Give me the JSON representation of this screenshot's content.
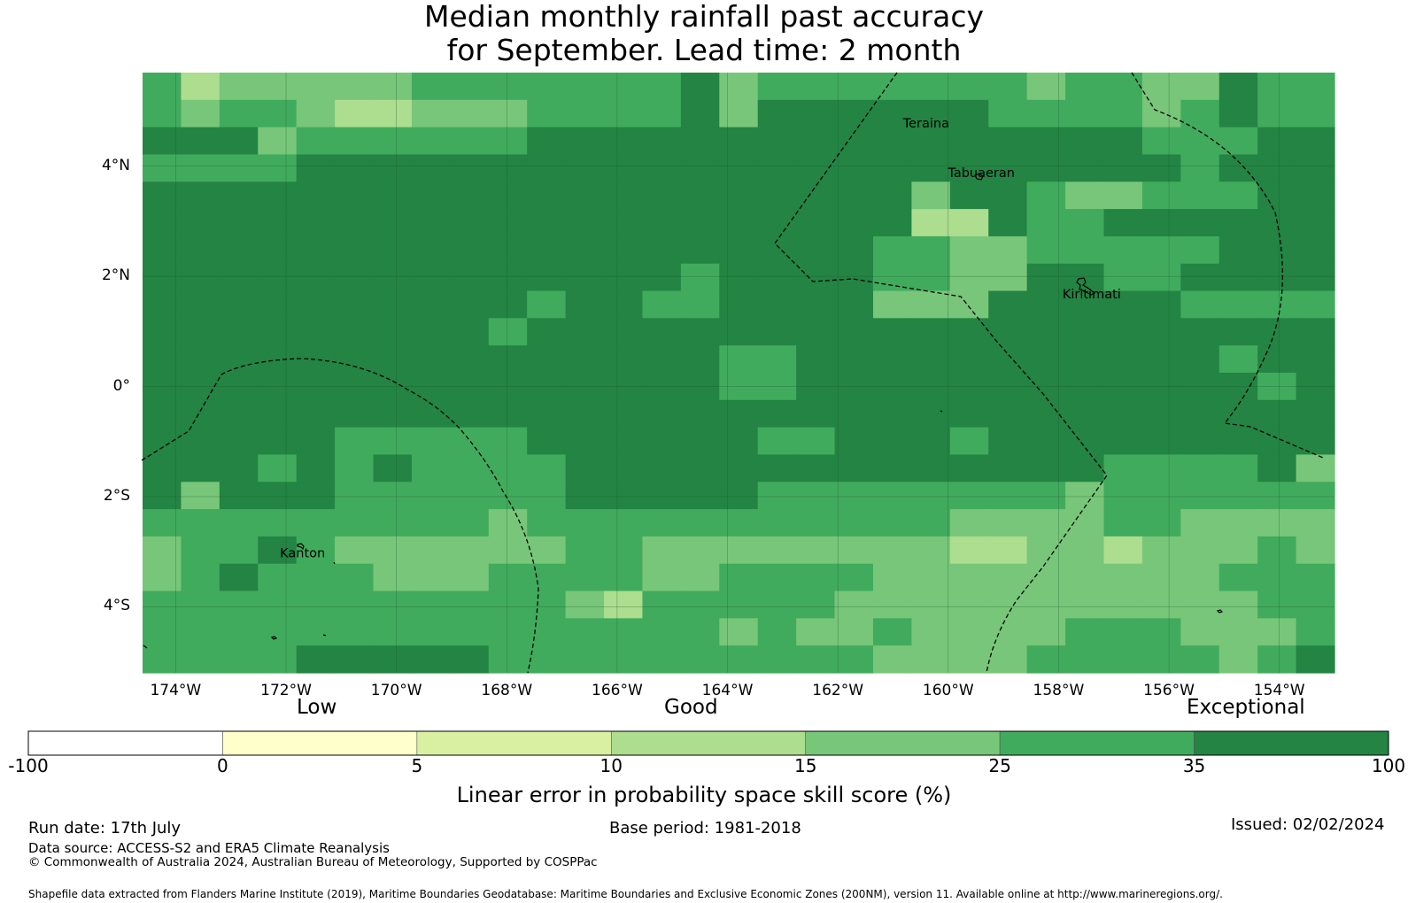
{
  "title": {
    "line1": "Median monthly rainfall past accuracy",
    "line2": "for September. Lead time: 2 month"
  },
  "map": {
    "lat_range": [
      -5.2,
      5.7
    ],
    "lon_range": [
      -174.6,
      -153.0
    ],
    "lat_ticks": [
      {
        "value": 4,
        "label": "4°N"
      },
      {
        "value": 2,
        "label": "2°N"
      },
      {
        "value": 0,
        "label": "0°"
      },
      {
        "value": -2,
        "label": "2°S"
      },
      {
        "value": -4,
        "label": "4°S"
      }
    ],
    "lon_ticks": [
      {
        "value": -174,
        "label": "174°W"
      },
      {
        "value": -172,
        "label": "172°W"
      },
      {
        "value": -170,
        "label": "170°W"
      },
      {
        "value": -168,
        "label": "168°W"
      },
      {
        "value": -166,
        "label": "166°W"
      },
      {
        "value": -164,
        "label": "164°W"
      },
      {
        "value": -162,
        "label": "162°W"
      },
      {
        "value": -160,
        "label": "160°W"
      },
      {
        "value": -158,
        "label": "158°W"
      },
      {
        "value": -156,
        "label": "156°W"
      },
      {
        "value": -154,
        "label": "154°W"
      }
    ],
    "grid": true,
    "cell_codes": "Code per grid cell, row by row north to south; 0 = 0–5, 1 = 5–10, 2 = 10–15, 3 = 15–25, 4 = 25–35, 5 = 35–100",
    "cells": [
      "4233333444444453444444434433544",
      "4344322333444453555555444434544",
      "5553444444555555555555555544455",
      "4444555555555555555555555554555",
      "5555555555555555555535543344455",
      "5555555555555555555522544555555",
      "5555555555555555555443344444555",
      "5555555555555545555443355445555",
      "5555555555455445555333555554444",
      "5555555554555555555555555555555",
      "5555555555555554455555555555455",
      "5555555555555554455555555555545",
      "5555555555555555555555555555555",
      "5555544444555555445554555555555",
      "5554545444455555555555555444453",
      "5355544444455555444444443444444",
      "4444444443444444444443333443333",
      "3445433333344333333332233233343",
      "3454443334444334444333333333444",
      "4444444444432444443333333333344",
      "4444444444444443433433334443334",
      "4444555554444444444333344444345"
    ],
    "places": [
      {
        "name": "Teraina",
        "lon": -160.4,
        "lat": 4.7
      },
      {
        "name": "Tabuaeran",
        "lon": -159.4,
        "lat": 3.8
      },
      {
        "name": "Kiritimati",
        "lon": -157.4,
        "lat": 1.6
      },
      {
        "name": "Kanton",
        "lon": -171.7,
        "lat": -3.1
      }
    ]
  },
  "colorbar": {
    "bins": [
      {
        "from": "-100",
        "to": "0",
        "color": "#ffffff"
      },
      {
        "from": "0",
        "to": "5",
        "color": "#ffffcc"
      },
      {
        "from": "5",
        "to": "10",
        "color": "#d9f0a3"
      },
      {
        "from": "10",
        "to": "15",
        "color": "#addd8e"
      },
      {
        "from": "15",
        "to": "25",
        "color": "#78c679"
      },
      {
        "from": "25",
        "to": "35",
        "color": "#41ab5d"
      },
      {
        "from": "35",
        "to": "100",
        "color": "#238443"
      }
    ],
    "tick_labels": [
      "-100",
      "0",
      "5",
      "10",
      "15",
      "25",
      "35",
      "100"
    ],
    "categories": {
      "low": "Low",
      "good": "Good",
      "exceptional": "Exceptional"
    },
    "label": "Linear error in probability space skill score (%)"
  },
  "footer": {
    "run_date": "Run date: 17th July",
    "base_period": "Base period: 1981-2018",
    "issued": "Issued: 02/02/2024",
    "data_source": "Data source: ACCESS-S2 and ERA5 Climate Reanalysis",
    "copyright": "© Commonwealth of Australia 2024, Australian Bureau of Meteorology, Supported by COSPPac",
    "shapefile": "Shapefile data extracted from Flanders Marine Institute (2019), Maritime Boundaries Geodatabase: Maritime Boundaries and Exclusive Economic Zones (200NM), version 11. Available online at http://www.marineregions.org/."
  }
}
